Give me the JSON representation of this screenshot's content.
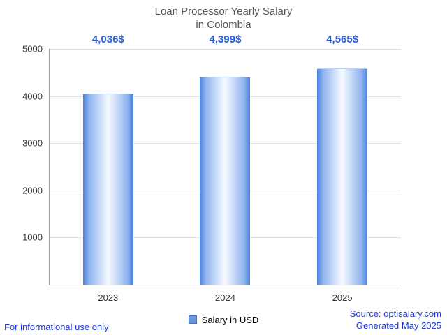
{
  "title": {
    "line1": "Loan Processor Yearly Salary",
    "line2": "in Colombia"
  },
  "chart_data": {
    "type": "bar",
    "title": "Loan Processor Yearly Salary in Colombia",
    "categories": [
      "2023",
      "2024",
      "2025"
    ],
    "values": [
      4036,
      4399,
      4565
    ],
    "value_labels": [
      "4,036$",
      "4,399$",
      "4,565$"
    ],
    "series_name": "Salary in USD",
    "xlabel": "",
    "ylabel": "",
    "ylim": [
      0,
      5000
    ],
    "yticks": [
      1000,
      2000,
      3000,
      4000,
      5000
    ],
    "ytick_labels": [
      "1000",
      "2000",
      "3000",
      "4000",
      "5000"
    ],
    "grid": true,
    "legend_position": "bottom",
    "bar_color_edge": "#4a82dd",
    "bar_color_center": "#f7faff",
    "value_label_color": "#2a62d9"
  },
  "legend": {
    "label": "Salary in USD",
    "marker_color": "#6b96e0"
  },
  "footer": {
    "left": "For informational use only",
    "source": "Source: optisalary.com",
    "generated": "Generated May 2025"
  }
}
